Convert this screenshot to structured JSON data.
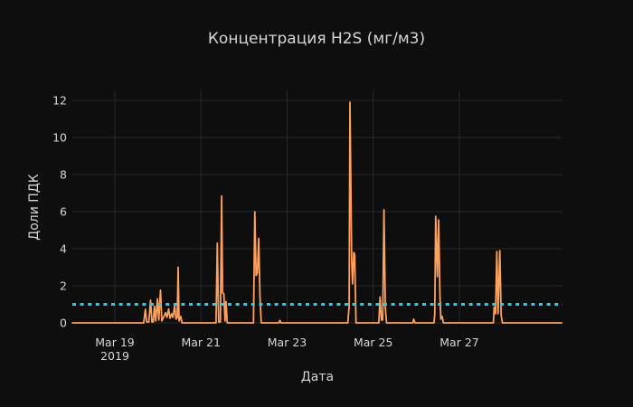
{
  "chart": {
    "title": "Концентрация H2S (мг/м3)",
    "x_axis_title": "Дата",
    "y_axis_title": "Доли ПДК"
  },
  "colors": {
    "background": "#0e0e0e",
    "text": "#d6d6d6",
    "grid": "#26282c",
    "line": "#FFA15A",
    "threshold": "#19D3F3"
  },
  "chart_data": {
    "type": "line",
    "title": "Концентрация H2S (мг/м3)",
    "xlabel": "Дата",
    "ylabel": "Доли ПДК",
    "x_unit": "days; t=1 corresponds to Mar 19 2019, t=3 to Mar 21, etc.",
    "xlim": [
      0,
      11.39
    ],
    "ylim": [
      0,
      12.6
    ],
    "grid": true,
    "legend": "none",
    "yticks": [
      0,
      2,
      4,
      6,
      8,
      10,
      12
    ],
    "xticks": [
      {
        "t": 1,
        "label": "Mar 19",
        "sublabel": "2019"
      },
      {
        "t": 3,
        "label": "Mar 21"
      },
      {
        "t": 5,
        "label": "Mar 23"
      },
      {
        "t": 7,
        "label": "Mar 25"
      },
      {
        "t": 9,
        "label": "Mar 27"
      }
    ],
    "threshold": {
      "value": 1,
      "color": "#19D3F3",
      "style": "dashed"
    },
    "series": [
      {
        "name": "H2S",
        "color": "#FFA15A",
        "width": 1.8,
        "points": [
          [
            0,
            0
          ],
          [
            1.67,
            0
          ],
          [
            1.71,
            0.73
          ],
          [
            1.74,
            0.05
          ],
          [
            1.79,
            0.05
          ],
          [
            1.83,
            1.22
          ],
          [
            1.86,
            0.05
          ],
          [
            1.89,
            0.05
          ],
          [
            1.92,
            0.9
          ],
          [
            1.95,
            0.1
          ],
          [
            1.99,
            1.3
          ],
          [
            2.02,
            0.15
          ],
          [
            2.06,
            1.76
          ],
          [
            2.09,
            0.1
          ],
          [
            2.12,
            0.25
          ],
          [
            2.18,
            0.55
          ],
          [
            2.21,
            0.3
          ],
          [
            2.25,
            0.75
          ],
          [
            2.28,
            0.25
          ],
          [
            2.32,
            0.5
          ],
          [
            2.35,
            0.3
          ],
          [
            2.39,
            0.95
          ],
          [
            2.42,
            0.2
          ],
          [
            2.45,
            0.3
          ],
          [
            2.47,
            3.0
          ],
          [
            2.49,
            0.1
          ],
          [
            2.53,
            0.35
          ],
          [
            2.56,
            0
          ],
          [
            3.35,
            0
          ],
          [
            3.38,
            4.3
          ],
          [
            3.41,
            0.05
          ],
          [
            3.45,
            0.05
          ],
          [
            3.48,
            6.85
          ],
          [
            3.5,
            1.62
          ],
          [
            3.53,
            1.58
          ],
          [
            3.56,
            0.1
          ],
          [
            3.58,
            1.15
          ],
          [
            3.61,
            0
          ],
          [
            4.22,
            0
          ],
          [
            4.25,
            6.0
          ],
          [
            4.28,
            2.55
          ],
          [
            4.31,
            2.7
          ],
          [
            4.34,
            4.55
          ],
          [
            4.37,
            1.4
          ],
          [
            4.4,
            0
          ],
          [
            4.81,
            0
          ],
          [
            4.83,
            0.13
          ],
          [
            4.86,
            0
          ],
          [
            6.41,
            0
          ],
          [
            6.44,
            0.9
          ],
          [
            6.46,
            11.9
          ],
          [
            6.5,
            3.3
          ],
          [
            6.52,
            2.1
          ],
          [
            6.55,
            3.8
          ],
          [
            6.57,
            3.7
          ],
          [
            6.6,
            0
          ],
          [
            7.13,
            0
          ],
          [
            7.16,
            1.4
          ],
          [
            7.19,
            0.15
          ],
          [
            7.22,
            0.15
          ],
          [
            7.25,
            6.1
          ],
          [
            7.28,
            0.8
          ],
          [
            7.31,
            0
          ],
          [
            7.92,
            0
          ],
          [
            7.94,
            0.2
          ],
          [
            7.97,
            0
          ],
          [
            8.41,
            0
          ],
          [
            8.43,
            0.5
          ],
          [
            8.45,
            5.75
          ],
          [
            8.49,
            2.5
          ],
          [
            8.52,
            5.55
          ],
          [
            8.55,
            1.5
          ],
          [
            8.57,
            0.2
          ],
          [
            8.6,
            0.35
          ],
          [
            8.63,
            0
          ],
          [
            9.79,
            0
          ],
          [
            9.81,
            0.85
          ],
          [
            9.84,
            0.5
          ],
          [
            9.87,
            3.85
          ],
          [
            9.9,
            0.5
          ],
          [
            9.94,
            3.9
          ],
          [
            9.97,
            0.4
          ],
          [
            10.0,
            0
          ],
          [
            11.39,
            0
          ]
        ]
      }
    ]
  }
}
